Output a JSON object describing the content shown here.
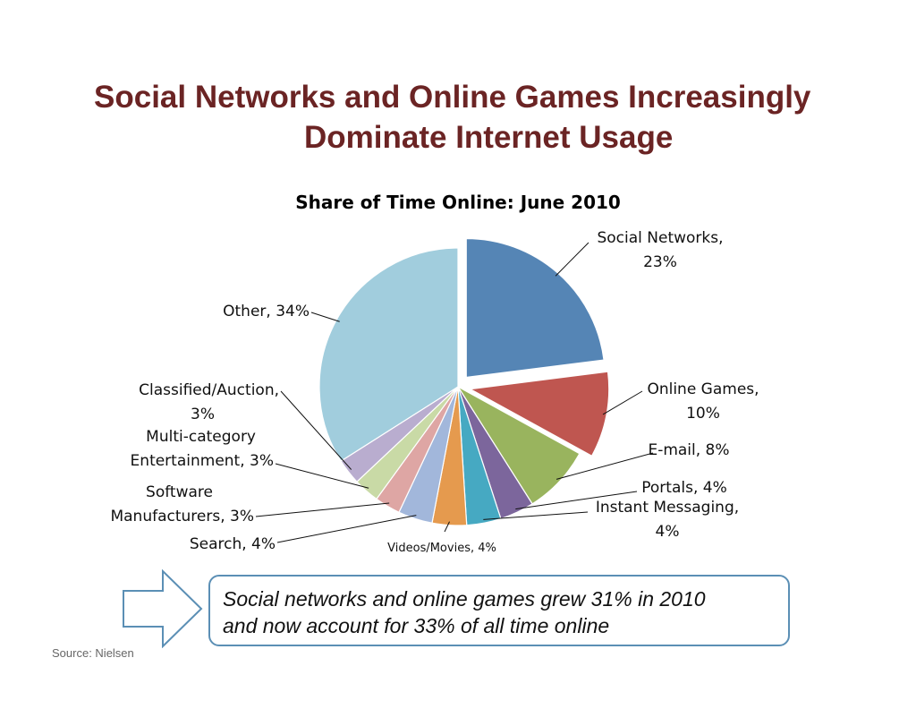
{
  "slide": {
    "title_line1": "Social Networks and Online Games Increasingly",
    "title_line2": "Dominate Internet Usage",
    "callout_line1": "Social networks and online games grew 31% in 2010",
    "callout_line2": "and now account for 33% of all time online",
    "source": "Source: Nielsen",
    "title_color": "#6b2424",
    "callout_border_color": "#5b8fb5"
  },
  "chart_data": {
    "type": "pie",
    "title": "Share of Time Online: June 2010",
    "unit": "%",
    "slices": [
      {
        "label_lines": [
          "Social Networks,",
          "23%"
        ],
        "category": "Social Networks",
        "value": 23,
        "color": "#5585b5",
        "exploded": true
      },
      {
        "label_lines": [
          "Online Games,",
          "10%"
        ],
        "category": "Online Games",
        "value": 10,
        "color": "#bf5650",
        "exploded": true
      },
      {
        "label_lines": [
          "E-mail, 8%"
        ],
        "category": "E-mail",
        "value": 8,
        "color": "#99b45e",
        "exploded": false
      },
      {
        "label_lines": [
          "Portals, 4%"
        ],
        "category": "Portals",
        "value": 4,
        "color": "#7c669c",
        "exploded": false
      },
      {
        "label_lines": [
          "Instant Messaging,",
          "4%"
        ],
        "category": "Instant Messaging",
        "value": 4,
        "color": "#46a9c2",
        "exploded": false
      },
      {
        "label_lines": [
          "Videos/Movies, 4%"
        ],
        "category": "Videos/Movies",
        "value": 4,
        "color": "#e59a4e",
        "exploded": false
      },
      {
        "label_lines": [
          "Search, 4%"
        ],
        "category": "Search",
        "value": 4,
        "color": "#a2b7db",
        "exploded": false
      },
      {
        "label_lines": [
          "Software",
          "Manufacturers, 3%"
        ],
        "category": "Software Manufacturers",
        "value": 3,
        "color": "#dea6a4",
        "exploded": false
      },
      {
        "label_lines": [
          "Multi-category",
          "Entertainment, 3%"
        ],
        "category": "Multi-category Entertainment",
        "value": 3,
        "color": "#c9daa6",
        "exploded": false
      },
      {
        "label_lines": [
          "Classified/Auction,",
          "3%"
        ],
        "category": "Classified/Auction",
        "value": 3,
        "color": "#b9adcf",
        "exploded": false
      },
      {
        "label_lines": [
          "Other, 34%"
        ],
        "category": "Other",
        "value": 34,
        "color": "#a1cddd",
        "exploded": false
      }
    ],
    "legend": "none",
    "data_labels": "outside with leader lines"
  }
}
